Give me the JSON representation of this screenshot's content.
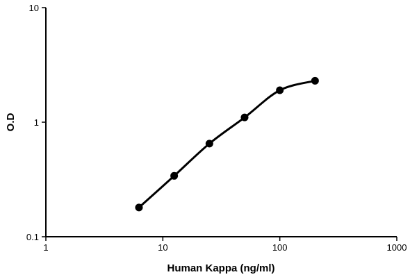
{
  "chart_data": {
    "type": "line",
    "title": "",
    "xlabel": "Human Kappa (ng/ml)",
    "ylabel": "O.D",
    "x_scale": "log",
    "y_scale": "log",
    "xlim": [
      1,
      1000
    ],
    "ylim": [
      0.1,
      10
    ],
    "x_ticks": [
      "1",
      "10",
      "100",
      "1000"
    ],
    "y_ticks": [
      "0.1",
      "1",
      "10"
    ],
    "grid": false,
    "legend": "none",
    "series": [
      {
        "x": [
          6.25,
          12.5,
          25,
          50,
          100,
          200
        ],
        "y": [
          0.18,
          0.34,
          0.65,
          1.1,
          1.9,
          2.3
        ],
        "color": "#000000",
        "marker": "circle"
      }
    ]
  }
}
